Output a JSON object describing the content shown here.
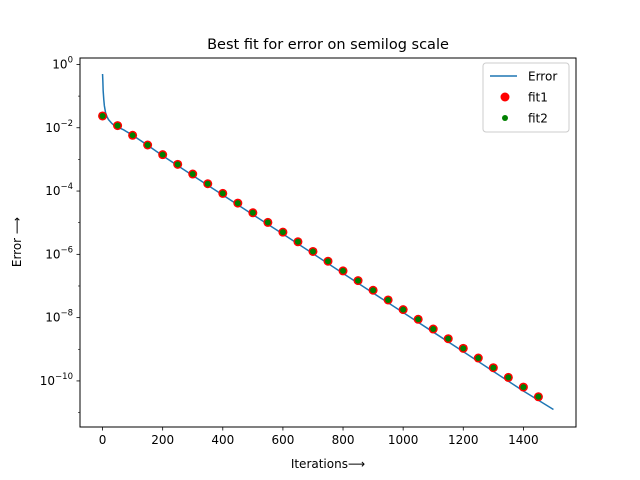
{
  "chart_data": {
    "type": "line",
    "title": "Best fit for error on semilog scale",
    "xlabel": "Iterations⟶",
    "ylabel": "Error ⟶",
    "yscale": "log",
    "xlim": [
      -75,
      1575
    ],
    "ylim": [
      3.5e-12,
      1.6
    ],
    "x_ticks": [
      0,
      200,
      400,
      600,
      800,
      1000,
      1200,
      1400
    ],
    "y_ticks": [
      {
        "value": 1,
        "base": "10",
        "exp": "0"
      },
      {
        "value": 0.01,
        "base": "10",
        "exp": "−2"
      },
      {
        "value": 0.0001,
        "base": "10",
        "exp": "−4"
      },
      {
        "value": 1e-06,
        "base": "10",
        "exp": "−6"
      },
      {
        "value": 1e-08,
        "base": "10",
        "exp": "−8"
      },
      {
        "value": 1e-10,
        "base": "10",
        "exp": "−10"
      }
    ],
    "grid": false,
    "legend": "top-right",
    "series": [
      {
        "name": "Error",
        "kind": "line",
        "color": "#1f77b4",
        "x": [
          0,
          1,
          2,
          4,
          6,
          10,
          15,
          20,
          30,
          40,
          50,
          70,
          100,
          150,
          200,
          300,
          400,
          500,
          600,
          700,
          800,
          900,
          1000,
          1100,
          1200,
          1300,
          1400,
          1500
        ],
        "y": [
          0.5,
          0.3,
          0.15,
          0.08,
          0.05,
          0.03,
          0.022,
          0.018,
          0.014,
          0.0115,
          0.0105,
          0.0086,
          0.0058,
          0.0028,
          0.0013,
          0.00031,
          7.5e-05,
          1.8e-05,
          4.4e-06,
          1.05e-06,
          2.5e-07,
          6e-08,
          1.45e-08,
          3.5e-09,
          8.4e-10,
          2e-10,
          4.8e-11,
          1.25e-11
        ]
      },
      {
        "name": "fit1",
        "kind": "scatter",
        "color": "#ff0000",
        "x": [
          0,
          50,
          100,
          150,
          200,
          250,
          300,
          350,
          400,
          450,
          500,
          550,
          600,
          650,
          700,
          750,
          800,
          850,
          900,
          950,
          1000,
          1050,
          1100,
          1150,
          1200,
          1250,
          1300,
          1350,
          1400,
          1450
        ],
        "y": [
          0.0236,
          0.0117,
          0.00577,
          0.00285,
          0.00141,
          0.000697,
          0.000345,
          0.00017,
          8.42e-05,
          4.16e-05,
          2.06e-05,
          1.02e-05,
          5.03e-06,
          2.49e-06,
          1.23e-06,
          6.07e-07,
          3e-07,
          1.48e-07,
          7.33e-08,
          3.62e-08,
          1.79e-08,
          8.85e-09,
          4.37e-09,
          2.16e-09,
          1.07e-09,
          5.28e-10,
          2.61e-10,
          1.29e-10,
          6.38e-11,
          3.15e-11
        ]
      },
      {
        "name": "fit2",
        "kind": "scatter",
        "color": "#008000",
        "x": [
          0,
          50,
          100,
          150,
          200,
          250,
          300,
          350,
          400,
          450,
          500,
          550,
          600,
          650,
          700,
          750,
          800,
          850,
          900,
          950,
          1000,
          1050,
          1100,
          1150,
          1200,
          1250,
          1300,
          1350,
          1400,
          1450
        ],
        "y": [
          0.0236,
          0.0117,
          0.00577,
          0.00285,
          0.00141,
          0.000697,
          0.000345,
          0.00017,
          8.42e-05,
          4.16e-05,
          2.06e-05,
          1.02e-05,
          5.03e-06,
          2.49e-06,
          1.23e-06,
          6.07e-07,
          3e-07,
          1.48e-07,
          7.33e-08,
          3.62e-08,
          1.79e-08,
          8.85e-09,
          4.37e-09,
          2.16e-09,
          1.07e-09,
          5.28e-10,
          2.61e-10,
          1.29e-10,
          6.38e-11,
          3.15e-11
        ]
      }
    ]
  }
}
